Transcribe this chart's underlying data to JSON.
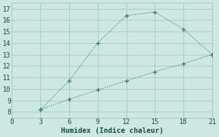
{
  "line1_x": [
    3,
    6,
    9,
    12,
    15,
    18,
    21
  ],
  "line1_y": [
    8.2,
    10.7,
    14.0,
    16.4,
    16.7,
    15.2,
    13.0
  ],
  "line2_x": [
    3,
    6,
    9,
    12,
    15,
    18,
    21
  ],
  "line2_y": [
    8.2,
    9.1,
    9.9,
    10.7,
    11.5,
    12.2,
    13.0
  ],
  "line_color": "#2e7d6e",
  "bg_color": "#cde8e4",
  "grid_color": "#aaccc7",
  "xlabel": "Humidex (Indice chaleur)",
  "xlim": [
    0,
    21
  ],
  "ylim": [
    7.5,
    17.5
  ],
  "xticks": [
    0,
    3,
    6,
    9,
    12,
    15,
    18,
    21
  ],
  "yticks": [
    8,
    9,
    10,
    11,
    12,
    13,
    14,
    15,
    16,
    17
  ]
}
